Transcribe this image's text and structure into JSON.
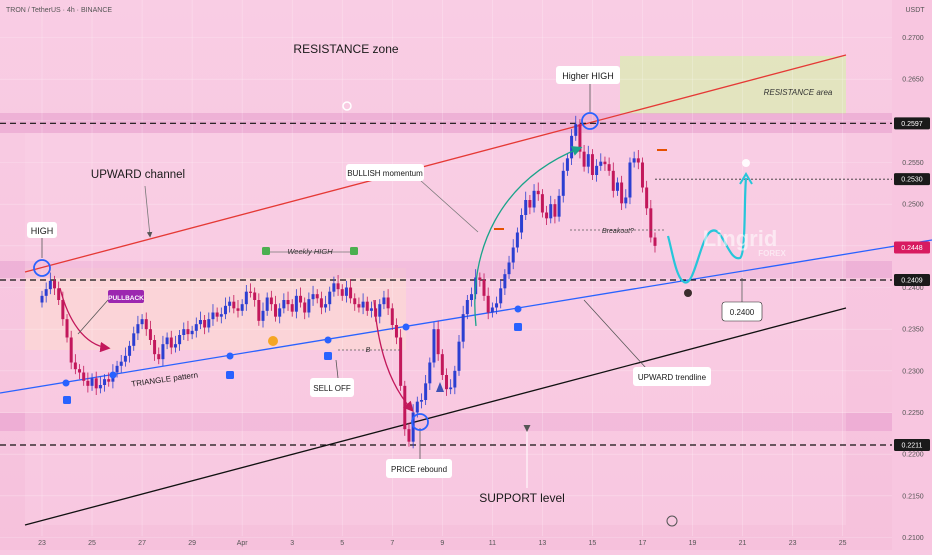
{
  "header": {
    "symbol": "TRON / TetherUS · 4h · BINANCE",
    "currency": "USDT"
  },
  "chart_data": {
    "type": "candlestick",
    "ylim": [
      0.2085,
      0.2745
    ],
    "y_ticks": [
      0.21,
      0.215,
      0.22,
      0.225,
      0.23,
      0.235,
      0.24,
      0.245,
      0.25,
      0.255,
      0.26,
      0.265,
      0.27
    ],
    "x_ticks": [
      {
        "label": "23",
        "i": 0
      },
      {
        "label": "25",
        "i": 12
      },
      {
        "label": "27",
        "i": 24
      },
      {
        "label": "29",
        "i": 36
      },
      {
        "label": "Apr",
        "i": 48
      },
      {
        "label": "3",
        "i": 60
      },
      {
        "label": "5",
        "i": 72
      },
      {
        "label": "7",
        "i": 84
      },
      {
        "label": "9",
        "i": 96
      },
      {
        "label": "11",
        "i": 108
      },
      {
        "label": "13",
        "i": 120
      },
      {
        "label": "15",
        "i": 132
      },
      {
        "label": "17",
        "i": 144
      },
      {
        "label": "19",
        "i": 156
      },
      {
        "label": "21",
        "i": 168
      },
      {
        "label": "23",
        "i": 180
      },
      {
        "label": "25",
        "i": 192
      }
    ],
    "close_series": [
      0.239,
      0.2398,
      0.2408,
      0.2399,
      0.2385,
      0.2362,
      0.234,
      0.231,
      0.2302,
      0.2298,
      0.2288,
      0.2282,
      0.2291,
      0.2279,
      0.2283,
      0.229,
      0.2287,
      0.2298,
      0.2306,
      0.2311,
      0.2318,
      0.233,
      0.2345,
      0.2356,
      0.2362,
      0.235,
      0.2337,
      0.232,
      0.2314,
      0.2332,
      0.234,
      0.2328,
      0.2332,
      0.2343,
      0.235,
      0.2344,
      0.2348,
      0.2356,
      0.2361,
      0.2352,
      0.2362,
      0.237,
      0.2365,
      0.2368,
      0.2378,
      0.2383,
      0.2375,
      0.2372,
      0.238,
      0.2395,
      0.2394,
      0.2385,
      0.236,
      0.2372,
      0.2388,
      0.238,
      0.2365,
      0.2375,
      0.2385,
      0.238,
      0.2371,
      0.239,
      0.2382,
      0.237,
      0.2386,
      0.2392,
      0.2387,
      0.2376,
      0.238,
      0.2395,
      0.2405,
      0.2398,
      0.239,
      0.24,
      0.2387,
      0.238,
      0.2376,
      0.2383,
      0.2372,
      0.2375,
      0.2365,
      0.238,
      0.2388,
      0.2375,
      0.2355,
      0.234,
      0.2282,
      0.223,
      0.2215,
      0.225,
      0.2263,
      0.2265,
      0.2285,
      0.231,
      0.235,
      0.232,
      0.2295,
      0.2278,
      0.228,
      0.23,
      0.2335,
      0.2368,
      0.2385,
      0.2392,
      0.2412,
      0.2409,
      0.239,
      0.237,
      0.2376,
      0.2381,
      0.2399,
      0.2416,
      0.243,
      0.2448,
      0.2466,
      0.2487,
      0.2505,
      0.2496,
      0.2516,
      0.2512,
      0.249,
      0.2483,
      0.25,
      0.2485,
      0.251,
      0.254,
      0.2555,
      0.2582,
      0.2596,
      0.2563,
      0.2545,
      0.256,
      0.2535,
      0.2546,
      0.2551,
      0.2548,
      0.254,
      0.2516,
      0.2526,
      0.2501,
      0.2508,
      0.255,
      0.2555,
      0.255,
      0.252,
      0.2495,
      0.246,
      0.245
    ],
    "levels": [
      {
        "value": 0.2597,
        "label": "0.2597",
        "style": "dashed"
      },
      {
        "value": 0.253,
        "label": "0.2530",
        "style": "dotted"
      },
      {
        "value": 0.2448,
        "label": "0.2448",
        "style": "current"
      },
      {
        "value": 0.2409,
        "label": "0.2409",
        "style": "dashed"
      },
      {
        "value": 0.2211,
        "label": "0.2211",
        "style": "dashed"
      }
    ],
    "colors": {
      "up": "#2c3fd1",
      "down": "#c2185b",
      "resistance_line": "#e53935",
      "trendline": "#2962ff",
      "support_line": "#111111"
    }
  },
  "annotations": {
    "resistance_zone": "RESISTANCE zone",
    "resistance_area": "RESISTANCE area",
    "higher_high": "Higher HIGH",
    "upward_channel": "UPWARD channel",
    "high": "HIGH",
    "pullback": "PULLBACK",
    "weekly_high": "Weekly HIGH",
    "bullish_momentum": "BULLISH momentum",
    "breakout": "Breakout?",
    "triangle_pattern": "TRIANGLE pattern",
    "b_marker": "B",
    "sell_off": "SELL OFF",
    "upward_trendline": "UPWARD trendline",
    "target_price": "0.2400",
    "price_rebound": "PRICE rebound",
    "support_level": "SUPPORT level",
    "watermark_main": "Lingrid",
    "watermark_sub": "FOREX"
  }
}
